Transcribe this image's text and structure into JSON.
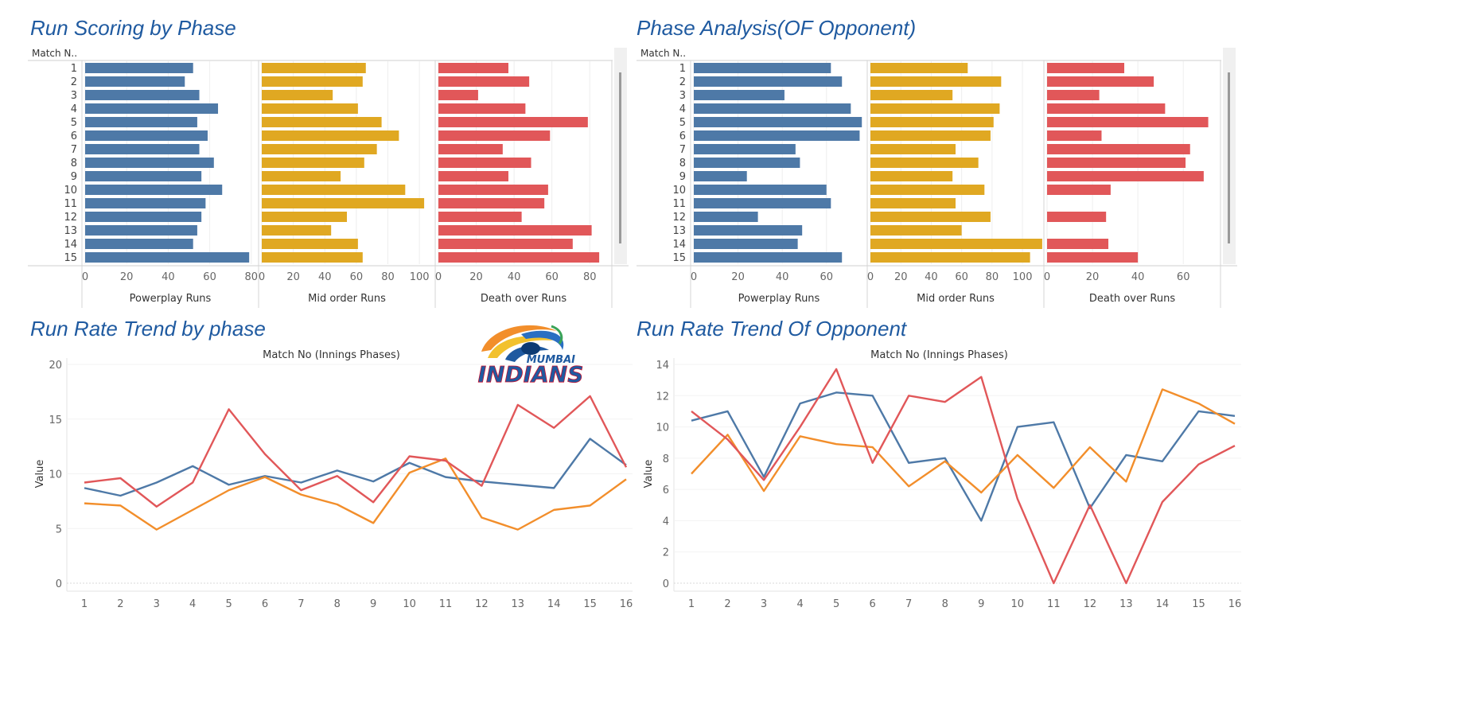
{
  "colors": {
    "blue": "#4e79a7",
    "gold": "#e0a822",
    "red": "#e15759",
    "orange": "#f28e2b",
    "title": "#1f5aa0"
  },
  "logo": {
    "line1": "MUMBAI",
    "line2": "INDIANS"
  },
  "chart_data": [
    {
      "type": "bar",
      "title": "Run Scoring by Phase",
      "row_header": "Match N..",
      "categories": [
        "1",
        "2",
        "3",
        "4",
        "5",
        "6",
        "7",
        "8",
        "9",
        "10",
        "11",
        "12",
        "13",
        "14",
        "15"
      ],
      "panels": [
        {
          "name": "Powerplay Runs",
          "xlim": [
            0,
            82
          ],
          "ticks": [
            0,
            20,
            40,
            60,
            80
          ],
          "values": [
            52,
            48,
            55,
            64,
            54,
            59,
            55,
            62,
            56,
            66,
            58,
            56,
            54,
            52,
            79
          ]
        },
        {
          "name": "Mid order Runs",
          "xlim": [
            0,
            108
          ],
          "ticks": [
            0,
            20,
            40,
            60,
            80,
            100
          ],
          "values": [
            66,
            64,
            45,
            61,
            76,
            87,
            73,
            65,
            50,
            91,
            103,
            54,
            44,
            61,
            64
          ]
        },
        {
          "name": "Death over Runs",
          "xlim": [
            0,
            90
          ],
          "ticks": [
            0,
            20,
            40,
            60,
            80
          ],
          "values": [
            37,
            48,
            21,
            46,
            79,
            59,
            34,
            49,
            37,
            58,
            56,
            44,
            81,
            71,
            85
          ]
        }
      ]
    },
    {
      "type": "bar",
      "title": "Phase Analysis(OF Opponent)",
      "row_header": "Match N..",
      "categories": [
        "1",
        "2",
        "3",
        "4",
        "5",
        "6",
        "7",
        "8",
        "9",
        "10",
        "11",
        "12",
        "13",
        "14",
        "15"
      ],
      "panels": [
        {
          "name": "Powerplay Runs",
          "xlim": [
            0,
            77
          ],
          "ticks": [
            0,
            20,
            40,
            60
          ],
          "values": [
            62,
            67,
            41,
            71,
            76,
            75,
            46,
            48,
            24,
            60,
            62,
            29,
            49,
            47,
            67
          ]
        },
        {
          "name": "Mid order Runs",
          "xlim": [
            0,
            112
          ],
          "ticks": [
            0,
            20,
            40,
            60,
            80,
            100
          ],
          "values": [
            64,
            86,
            54,
            85,
            81,
            79,
            56,
            71,
            54,
            75,
            56,
            79,
            60,
            113,
            105
          ]
        },
        {
          "name": "Death over Runs",
          "xlim": [
            0,
            75
          ],
          "ticks": [
            0,
            20,
            40,
            60
          ],
          "values": [
            34,
            47,
            23,
            52,
            71,
            24,
            63,
            61,
            69,
            28,
            0,
            26,
            0,
            27,
            40
          ]
        }
      ]
    },
    {
      "type": "line",
      "title": "Run Rate Trend by phase",
      "xlabel": "Match No (Innings Phases)",
      "ylabel": "Value",
      "x": [
        1,
        2,
        3,
        4,
        5,
        6,
        7,
        8,
        9,
        10,
        11,
        12,
        13,
        14,
        15,
        16
      ],
      "ylim": [
        0,
        20
      ],
      "yticks": [
        0,
        5,
        10,
        15,
        20
      ],
      "series": [
        {
          "color": "blue",
          "values": [
            8.7,
            8.0,
            9.2,
            10.7,
            9.0,
            9.8,
            9.2,
            10.3,
            9.3,
            11.0,
            9.7,
            9.3,
            9.0,
            8.7,
            13.2,
            10.8
          ]
        },
        {
          "color": "orange",
          "values": [
            7.3,
            7.1,
            4.9,
            6.7,
            8.5,
            9.7,
            8.1,
            7.2,
            5.5,
            10.1,
            11.4,
            6.0,
            4.9,
            6.7,
            7.1,
            9.5
          ]
        },
        {
          "color": "red",
          "values": [
            9.2,
            9.6,
            7.0,
            9.2,
            15.9,
            11.8,
            8.5,
            9.8,
            7.4,
            11.6,
            11.2,
            8.9,
            16.3,
            14.2,
            17.1,
            10.6
          ]
        }
      ]
    },
    {
      "type": "line",
      "title": "Run Rate Trend Of Opponent",
      "xlabel": "Match No (Innings Phases)",
      "ylabel": "Value",
      "x": [
        1,
        2,
        3,
        4,
        5,
        6,
        7,
        8,
        9,
        10,
        11,
        12,
        13,
        14,
        15,
        16
      ],
      "ylim": [
        0,
        14
      ],
      "yticks": [
        0,
        2,
        4,
        6,
        8,
        10,
        12,
        14
      ],
      "series": [
        {
          "color": "blue",
          "values": [
            10.4,
            11.0,
            6.8,
            11.5,
            12.2,
            12.0,
            7.7,
            8.0,
            4.0,
            10.0,
            10.3,
            4.8,
            8.2,
            7.8,
            11.0,
            10.7
          ]
        },
        {
          "color": "orange",
          "values": [
            7.0,
            9.5,
            5.9,
            9.4,
            8.9,
            8.7,
            6.2,
            7.8,
            5.8,
            8.2,
            6.1,
            8.7,
            6.5,
            12.4,
            11.5,
            10.2
          ]
        },
        {
          "color": "red",
          "values": [
            11.0,
            9.2,
            6.6,
            10.0,
            13.7,
            7.7,
            12.0,
            11.6,
            13.2,
            5.4,
            0.0,
            5.0,
            0.0,
            5.2,
            7.6,
            8.8
          ]
        }
      ]
    }
  ]
}
